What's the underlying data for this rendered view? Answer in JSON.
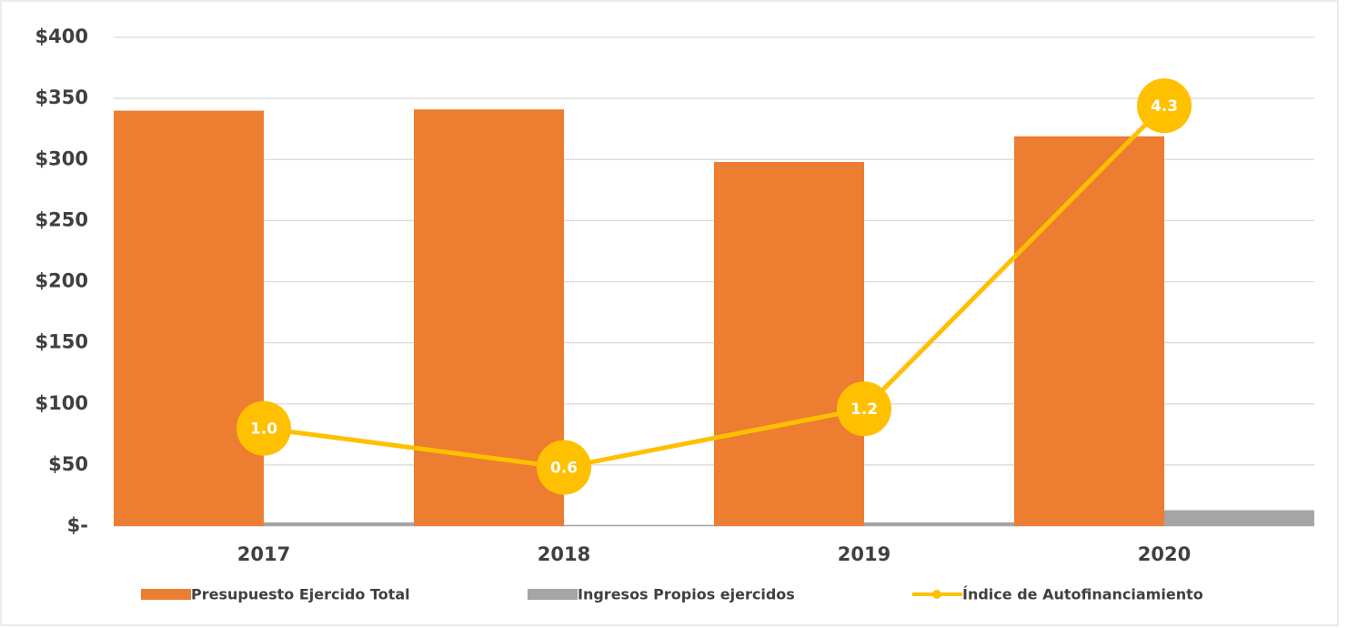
{
  "chart_data": {
    "type": "bar",
    "categories": [
      "2017",
      "2018",
      "2019",
      "2020"
    ],
    "series": [
      {
        "name": "Presupuesto Ejercido Total",
        "color": "#ed7d31",
        "values": [
          340,
          341,
          298,
          319
        ]
      },
      {
        "name": "Ingresos Propios ejercidos",
        "color": "#a5a5a5",
        "values": [
          3,
          1,
          3,
          13
        ]
      },
      {
        "name": "Índice de Autofinanciamiento",
        "type": "line",
        "axis": "y2",
        "color": "#ffc000",
        "values": [
          1.0,
          0.6,
          1.2,
          4.3
        ],
        "value_labels": [
          "1.0",
          "0.6",
          "1.2",
          "4.3"
        ]
      }
    ],
    "ylim": [
      0,
      400
    ],
    "yticks": [
      {
        "value": 0,
        "label": "$-"
      },
      {
        "value": 50,
        "label": "$50"
      },
      {
        "value": 100,
        "label": "$100"
      },
      {
        "value": 150,
        "label": "$150"
      },
      {
        "value": 200,
        "label": "$200"
      },
      {
        "value": 250,
        "label": "$250"
      },
      {
        "value": 300,
        "label": "$300"
      },
      {
        "value": 350,
        "label": "$350"
      },
      {
        "value": 400,
        "label": "$400"
      }
    ],
    "y2lim": [
      0,
      5
    ],
    "grid": true,
    "legend": "bottom"
  }
}
